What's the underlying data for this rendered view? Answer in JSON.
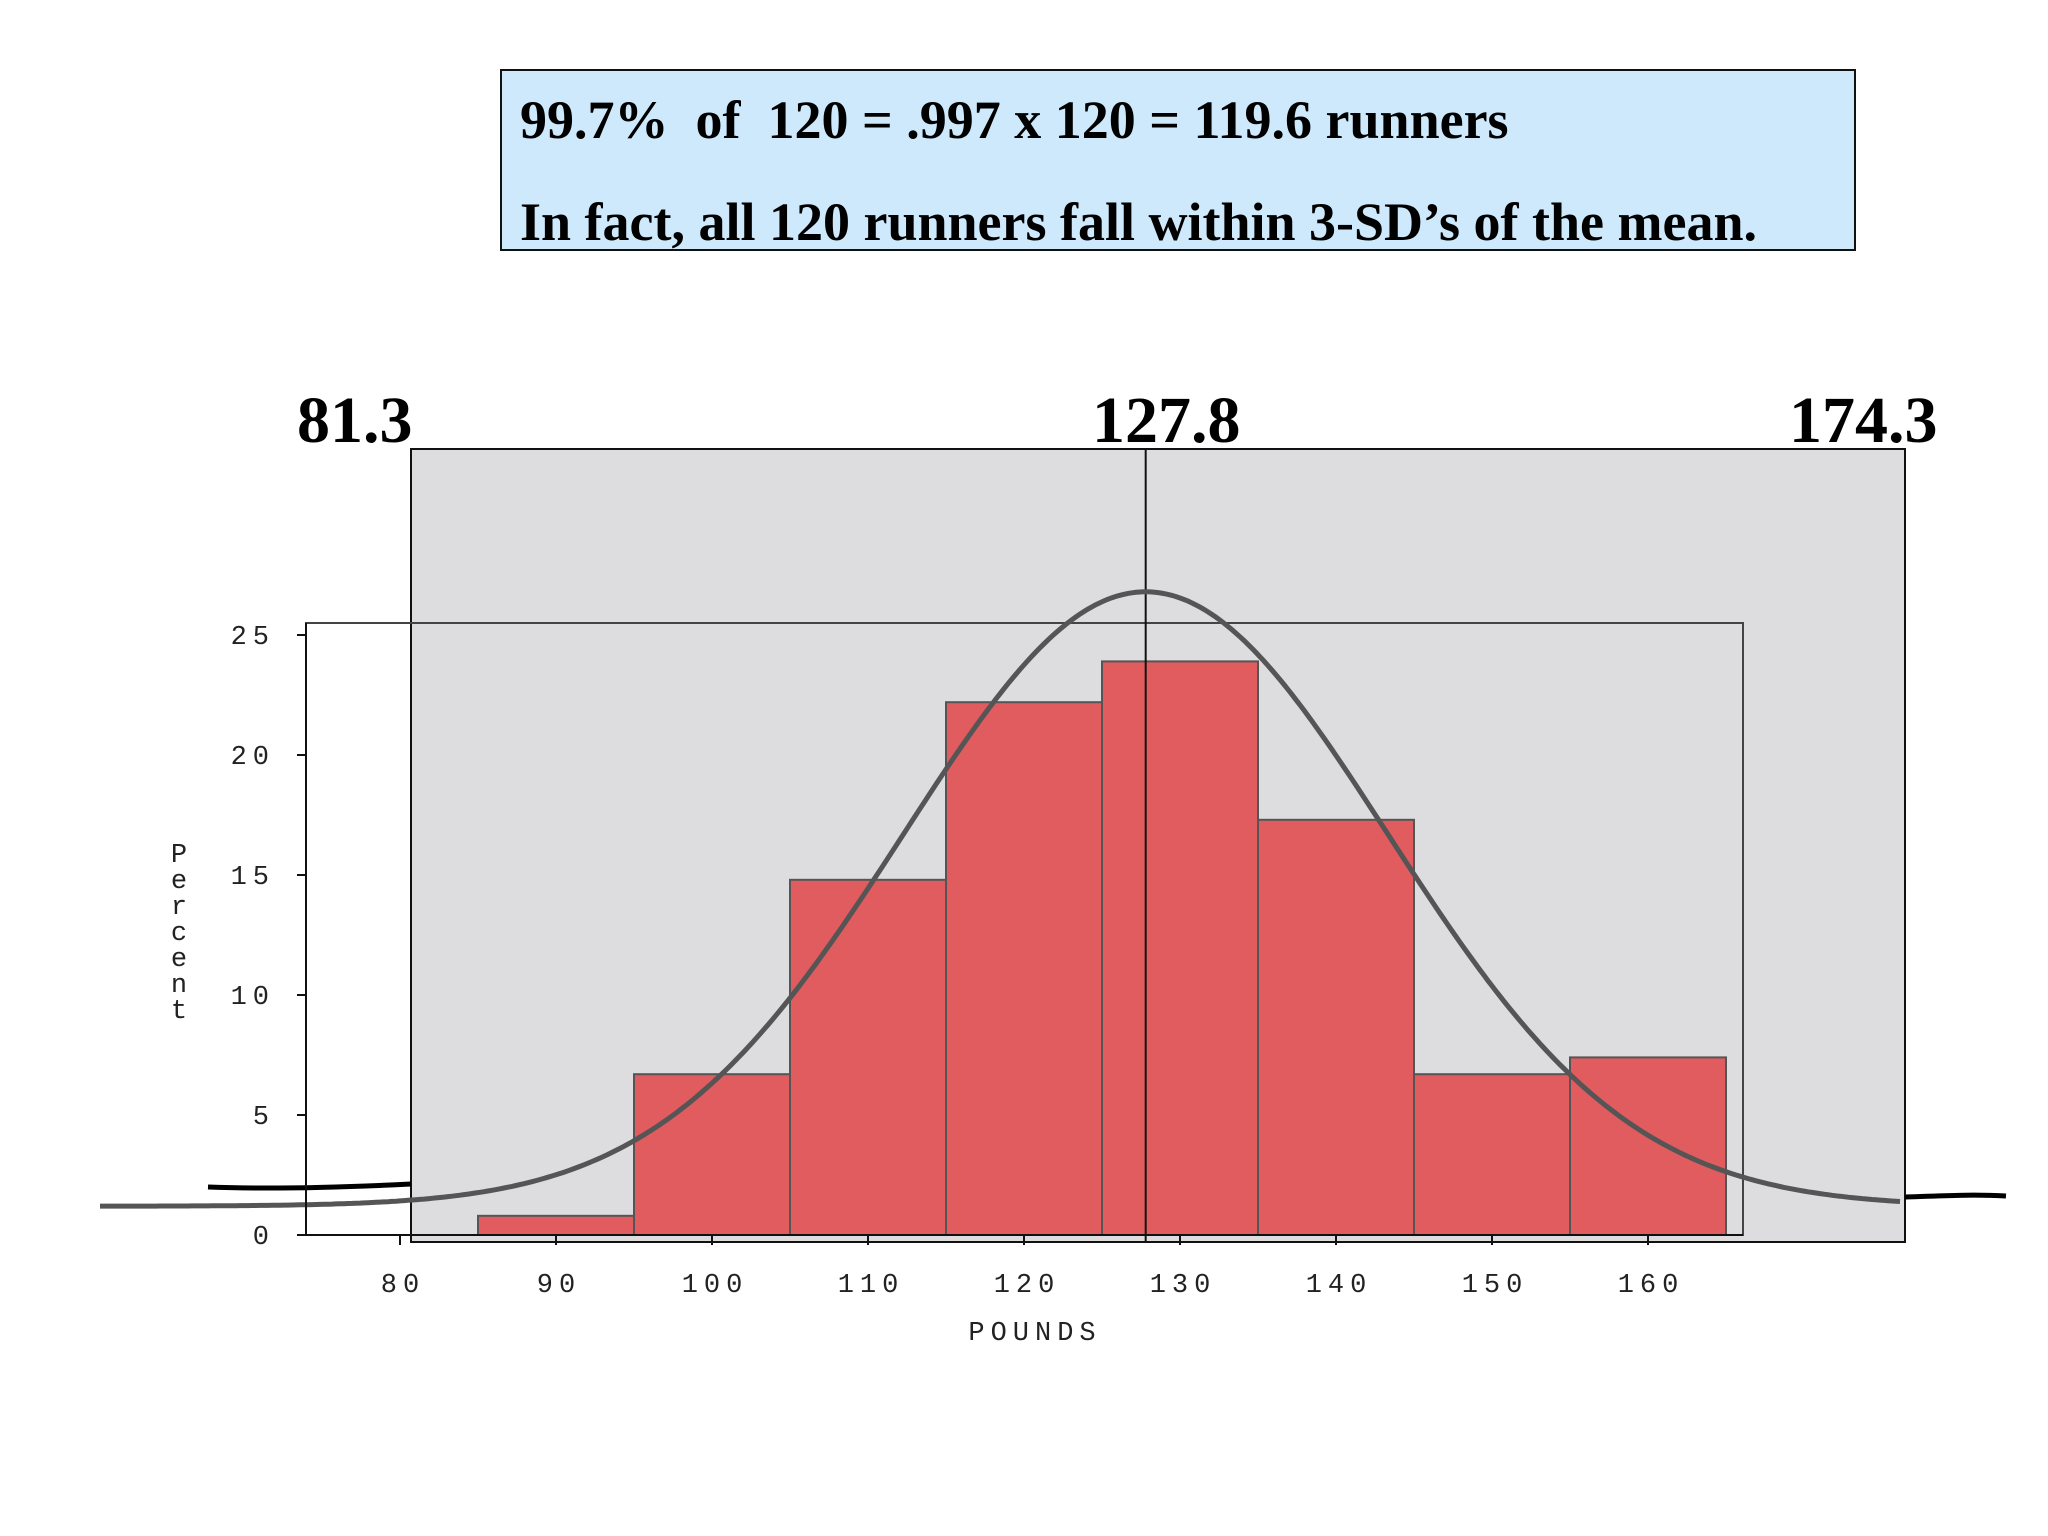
{
  "callout": {
    "line1": "99.7%  of  120 = .997 x 120 = 119.6 runners",
    "line2": "In fact, all 120 runners fall within 3-SD’s of the mean."
  },
  "markers": {
    "left": "81.3",
    "center": "127.8",
    "right": "174.3",
    "left_value": 81.3,
    "center_value": 127.8,
    "right_value": 174.3
  },
  "colors": {
    "callout_bg": "#cde9fb",
    "sd_region": "#dddde0",
    "bar_fill": "#e05c5e",
    "curve": "#555555",
    "hand_line": "#000000"
  },
  "chart_data": {
    "type": "bar",
    "xlabel": "POUNDS",
    "ylabel": "Percent",
    "xlim": [
      75,
      165
    ],
    "ylim": [
      0,
      25
    ],
    "x_ticks": [
      80,
      90,
      100,
      110,
      120,
      130,
      140,
      150,
      160
    ],
    "y_ticks": [
      0,
      5,
      10,
      15,
      20,
      25
    ],
    "bins": [
      {
        "start": 85,
        "end": 95,
        "value": 0.8
      },
      {
        "start": 95,
        "end": 105,
        "value": 6.7
      },
      {
        "start": 105,
        "end": 115,
        "value": 14.8
      },
      {
        "start": 115,
        "end": 125,
        "value": 22.2
      },
      {
        "start": 125,
        "end": 135,
        "value": 23.9
      },
      {
        "start": 135,
        "end": 145,
        "value": 17.3
      },
      {
        "start": 145,
        "end": 155,
        "value": 6.7
      },
      {
        "start": 155,
        "end": 165,
        "value": 7.4
      }
    ],
    "normal_curve": {
      "mean": 127.8,
      "sd": 15.5,
      "peak": 25.6
    },
    "mean_line": 127.8,
    "sd_range": [
      81.3,
      174.3
    ]
  }
}
